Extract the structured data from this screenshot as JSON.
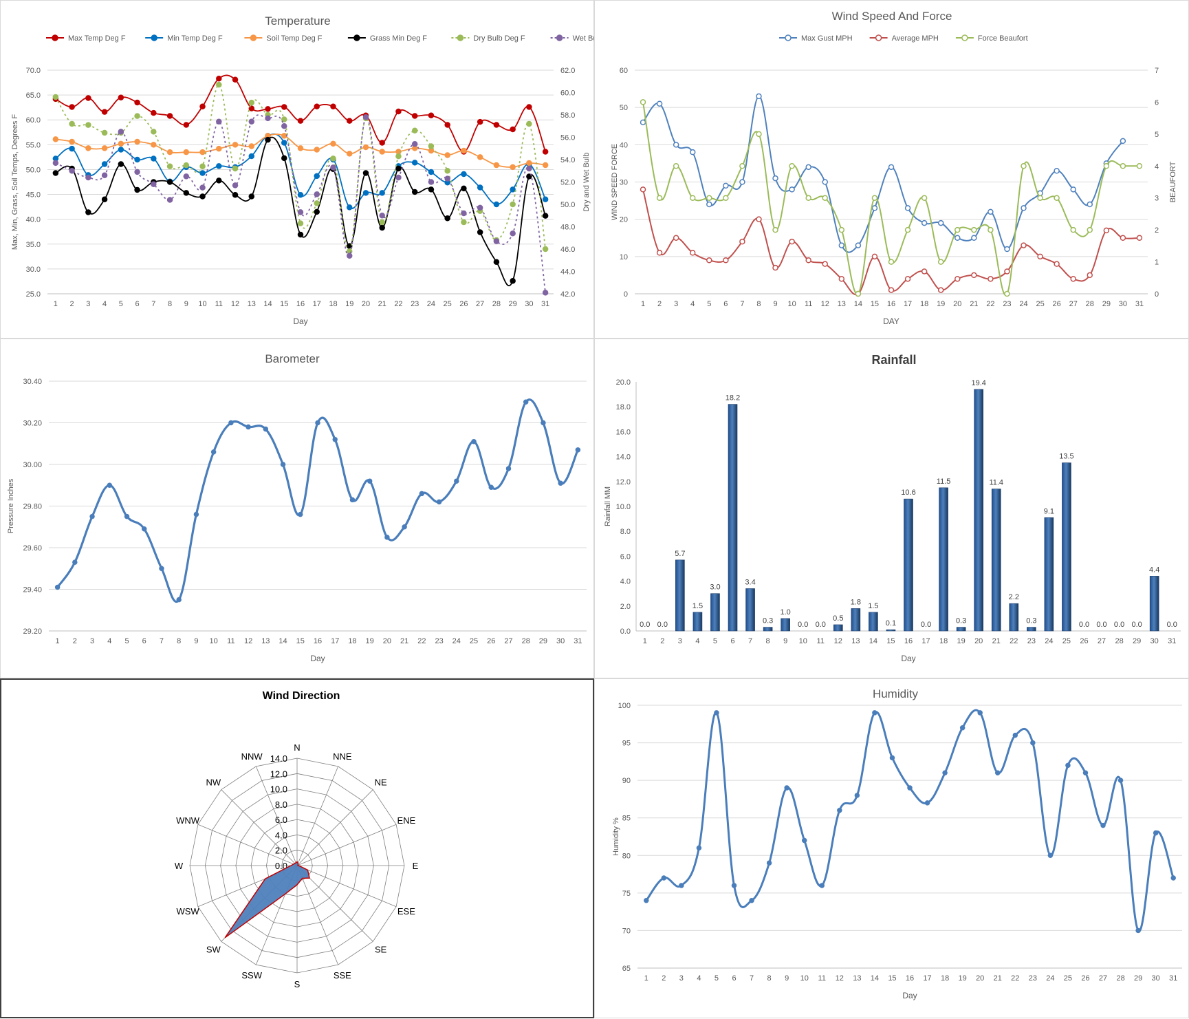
{
  "chart_data": [
    {
      "id": "temperature",
      "type": "line",
      "title": "Temperature",
      "xlabel": "Day",
      "ylabel": "Max, Min, Grass, Soil Temps, Degrees F",
      "y2label": "Dry and Wet Bulb",
      "ylim": [
        25,
        70
      ],
      "y2lim": [
        42,
        62
      ],
      "yticks": [
        "25.0",
        "30.0",
        "35.0",
        "40.0",
        "45.0",
        "50.0",
        "55.0",
        "60.0",
        "65.0",
        "70.0"
      ],
      "y2ticks": [
        "42.0",
        "44.0",
        "46.0",
        "48.0",
        "50.0",
        "52.0",
        "54.0",
        "56.0",
        "58.0",
        "60.0",
        "62.0"
      ],
      "grid": true,
      "legend_position": "top",
      "x": [
        1,
        2,
        3,
        4,
        5,
        6,
        7,
        8,
        9,
        10,
        11,
        12,
        13,
        14,
        15,
        16,
        17,
        18,
        19,
        20,
        21,
        22,
        23,
        24,
        25,
        26,
        27,
        28,
        29,
        30,
        31
      ],
      "series": [
        {
          "name": "Max Temp Deg F",
          "axis": "left",
          "dashed": false,
          "color": "#c00000",
          "values": [
            64.2,
            62.6,
            64.4,
            61.6,
            64.5,
            63.5,
            61.4,
            60.8,
            59.0,
            62.7,
            68.3,
            68.1,
            62.3,
            62.2,
            62.6,
            59.8,
            62.7,
            62.7,
            59.8,
            60.9,
            55.4,
            61.7,
            60.8,
            60.9,
            59.0,
            53.6,
            59.6,
            59.0,
            58.1,
            62.6,
            53.6
          ]
        },
        {
          "name": "Min Temp Deg F",
          "axis": "left",
          "dashed": false,
          "color": "#0070c0",
          "values": [
            52.2,
            54.2,
            48.9,
            51.1,
            54.0,
            52.0,
            52.2,
            47.6,
            50.5,
            49.3,
            50.7,
            50.5,
            52.7,
            56.8,
            55.4,
            44.9,
            48.7,
            52.0,
            42.4,
            45.3,
            45.3,
            50.7,
            51.4,
            49.5,
            47.4,
            49.1,
            46.4,
            43.0,
            46.0,
            51.1,
            44.0
          ]
        },
        {
          "name": "Soil Temp Deg F",
          "axis": "left",
          "dashed": false,
          "color": "#f79646",
          "values": [
            56.1,
            55.6,
            54.3,
            54.3,
            55.2,
            55.6,
            55.0,
            53.5,
            53.5,
            53.5,
            54.2,
            55.0,
            54.7,
            56.8,
            56.8,
            54.3,
            54.0,
            55.2,
            53.2,
            54.5,
            53.6,
            53.6,
            54.3,
            53.8,
            52.9,
            53.8,
            52.5,
            50.9,
            50.5,
            51.3,
            50.9
          ]
        },
        {
          "name": "Grass Min Deg F",
          "axis": "left",
          "dashed": false,
          "color": "#000000",
          "values": [
            49.3,
            50.2,
            41.4,
            44.0,
            51.1,
            45.9,
            47.5,
            47.5,
            45.3,
            44.6,
            47.8,
            44.9,
            44.6,
            56.0,
            52.3,
            36.9,
            41.5,
            50.1,
            34.6,
            49.3,
            38.3,
            50.2,
            45.5,
            46.0,
            40.2,
            46.2,
            37.4,
            31.4,
            27.6,
            48.6,
            40.7
          ]
        },
        {
          "name": "Dry Bulb Deg F",
          "axis": "right",
          "dashed": true,
          "color": "#9bbb59",
          "values": [
            59.6,
            57.2,
            57.1,
            56.4,
            56.4,
            57.9,
            56.5,
            53.4,
            53.5,
            53.4,
            60.7,
            53.2,
            59.1,
            58.0,
            57.6,
            48.3,
            50.1,
            54.1,
            45.8,
            57.7,
            48.4,
            54.3,
            56.6,
            55.2,
            53.0,
            48.4,
            49.4,
            46.8,
            50.0,
            57.2,
            46.0
          ]
        },
        {
          "name": "Wet Bulb Deg F",
          "axis": "right",
          "dashed": true,
          "color": "#8064a2",
          "values": [
            53.7,
            53.0,
            52.4,
            52.6,
            56.5,
            52.9,
            51.8,
            50.4,
            52.5,
            51.5,
            57.4,
            51.7,
            57.4,
            57.7,
            57.0,
            49.3,
            50.9,
            53.3,
            45.4,
            57.8,
            49.0,
            52.4,
            55.4,
            52.0,
            52.3,
            49.2,
            49.7,
            46.7,
            47.4,
            53.2,
            42.1
          ]
        }
      ]
    },
    {
      "id": "wind",
      "type": "line",
      "title": "Wind Speed And Force",
      "xlabel": "DAY",
      "ylabel": "WIND SPEED FORCE",
      "y2label": "BEAUFORT",
      "ylim": [
        0,
        60
      ],
      "y2lim": [
        0,
        7
      ],
      "yticks": [
        "0",
        "10",
        "20",
        "30",
        "40",
        "50",
        "60"
      ],
      "y2ticks": [
        "0",
        "1",
        "2",
        "3",
        "4",
        "5",
        "6",
        "7"
      ],
      "grid": true,
      "legend_position": "top",
      "x": [
        1,
        2,
        3,
        4,
        5,
        6,
        7,
        8,
        9,
        10,
        11,
        12,
        13,
        14,
        15,
        16,
        17,
        18,
        19,
        20,
        21,
        22,
        23,
        24,
        25,
        26,
        27,
        28,
        29,
        30,
        31
      ],
      "series": [
        {
          "name": "Max Gust MPH",
          "axis": "left",
          "color": "#4f81bd",
          "values": [
            46,
            51,
            40,
            38,
            24,
            29,
            30,
            53,
            31,
            28,
            34,
            30,
            13,
            13,
            23,
            34,
            23,
            19,
            19,
            15,
            15,
            22,
            12,
            23,
            27,
            33,
            28,
            24,
            35,
            41,
            null
          ]
        },
        {
          "name": "Average MPH",
          "axis": "left",
          "color": "#c0504d",
          "values": [
            28,
            11,
            15,
            11,
            9,
            9,
            14,
            20,
            7,
            14,
            9,
            8,
            4,
            0,
            10,
            1,
            4,
            6,
            1,
            4,
            5,
            4,
            6,
            13,
            10,
            8,
            4,
            5,
            17,
            15,
            15
          ]
        },
        {
          "name": "Force Beaufort",
          "axis": "right",
          "color": "#9bbb59",
          "values": [
            6,
            3,
            4,
            3,
            3,
            3,
            4,
            5,
            2,
            4,
            3,
            3,
            2,
            0,
            3,
            1,
            2,
            3,
            1,
            2,
            2,
            2,
            0,
            4,
            3,
            3,
            2,
            2,
            4,
            4,
            4
          ]
        }
      ]
    },
    {
      "id": "barometer",
      "type": "line",
      "title": "Barometer",
      "xlabel": "Day",
      "ylabel": "Pressure Inches",
      "ylim": [
        29.2,
        30.4
      ],
      "yticks": [
        "29.20",
        "29.40",
        "29.60",
        "29.80",
        "30.00",
        "30.20",
        "30.40"
      ],
      "grid": true,
      "x": [
        1,
        2,
        3,
        4,
        5,
        6,
        7,
        8,
        9,
        10,
        11,
        12,
        13,
        14,
        15,
        16,
        17,
        18,
        19,
        20,
        21,
        22,
        23,
        24,
        25,
        26,
        27,
        28,
        29,
        30,
        31
      ],
      "series": [
        {
          "name": "",
          "color": "#4a7ebb",
          "values": [
            29.41,
            29.53,
            29.75,
            29.9,
            29.75,
            29.69,
            29.5,
            29.35,
            29.76,
            30.06,
            30.2,
            30.18,
            30.17,
            30.0,
            29.76,
            30.2,
            30.12,
            29.83,
            29.92,
            29.65,
            29.7,
            29.86,
            29.82,
            29.92,
            30.11,
            29.89,
            29.98,
            30.3,
            30.2,
            29.91,
            30.07
          ]
        }
      ]
    },
    {
      "id": "rainfall",
      "type": "bar",
      "title": "Rainfall",
      "xlabel": "Day",
      "ylabel": "Rainfall MM",
      "ylim": [
        0,
        20
      ],
      "yticks": [
        "0.0",
        "2.0",
        "4.0",
        "6.0",
        "8.0",
        "10.0",
        "12.0",
        "14.0",
        "16.0",
        "18.0",
        "20.0"
      ],
      "grid": false,
      "categories": [
        "1",
        "2",
        "3",
        "4",
        "5",
        "6",
        "7",
        "8",
        "9",
        "10",
        "11",
        "12",
        "13",
        "14",
        "15",
        "16",
        "17",
        "18",
        "19",
        "20",
        "21",
        "22",
        "23",
        "24",
        "25",
        "26",
        "27",
        "28",
        "29",
        "30",
        "31"
      ],
      "values": [
        0.0,
        0.0,
        5.7,
        1.5,
        3.0,
        18.2,
        3.4,
        0.3,
        1.0,
        0.0,
        0.0,
        0.5,
        1.8,
        1.5,
        0.1,
        10.6,
        0.0,
        11.5,
        0.3,
        19.4,
        11.4,
        2.2,
        0.3,
        9.1,
        13.5,
        0.0,
        0.0,
        0.0,
        0.0,
        4.4,
        0.0
      ],
      "data_labels": [
        "0.0",
        "0.0",
        "5.7",
        "1.5",
        "3.0",
        "18.2",
        "3.4",
        "0.3",
        "1.0",
        "0.0",
        "0.0",
        "0.5",
        "1.8",
        "1.5",
        "0.1",
        "10.6",
        "0.0",
        "11.5",
        "0.3",
        "19.4",
        "11.4",
        "2.2",
        "0.3",
        "9.1",
        "13.5",
        "0.0",
        "0.0",
        "0.0",
        "0.0",
        "4.4",
        "0.0"
      ]
    },
    {
      "id": "wind_direction",
      "type": "radar",
      "title": "Wind Direction",
      "directions": [
        "N",
        "NNE",
        "NE",
        "ENE",
        "E",
        "ESE",
        "SE",
        "SSE",
        "S",
        "SSW",
        "SW",
        "WSW",
        "W",
        "WNW",
        "NW",
        "NNW"
      ],
      "values": [
        0.5,
        0.3,
        0.2,
        0.1,
        0.2,
        1.5,
        2.3,
        1.8,
        2.5,
        4.0,
        13.3,
        4.5,
        0.8,
        0.5,
        0.4,
        0.4
      ],
      "rlim": [
        0,
        14
      ],
      "rticks": [
        "0.0",
        "2.0",
        "4.0",
        "6.0",
        "8.0",
        "10.0",
        "12.0",
        "14.0"
      ],
      "colors": {
        "fill": "#4f81bd",
        "stroke": "#c00000"
      }
    },
    {
      "id": "humidity",
      "type": "line",
      "title": "Humidity",
      "xlabel": "Day",
      "ylabel": "Humidity %",
      "ylim": [
        65,
        100
      ],
      "yticks": [
        "65",
        "70",
        "75",
        "80",
        "85",
        "90",
        "95",
        "100"
      ],
      "grid": true,
      "x": [
        1,
        2,
        3,
        4,
        5,
        6,
        7,
        8,
        9,
        10,
        11,
        12,
        13,
        14,
        15,
        16,
        17,
        18,
        19,
        20,
        21,
        22,
        23,
        24,
        25,
        26,
        27,
        28,
        29,
        30,
        31
      ],
      "series": [
        {
          "name": "",
          "color": "#4a7ebb",
          "values": [
            74,
            77,
            76,
            81,
            99,
            76,
            74,
            79,
            89,
            82,
            76,
            86,
            88,
            99,
            93,
            89,
            87,
            91,
            97,
            99,
            91,
            96,
            95,
            80,
            92,
            91,
            84,
            90,
            70,
            83,
            77
          ]
        }
      ]
    }
  ]
}
